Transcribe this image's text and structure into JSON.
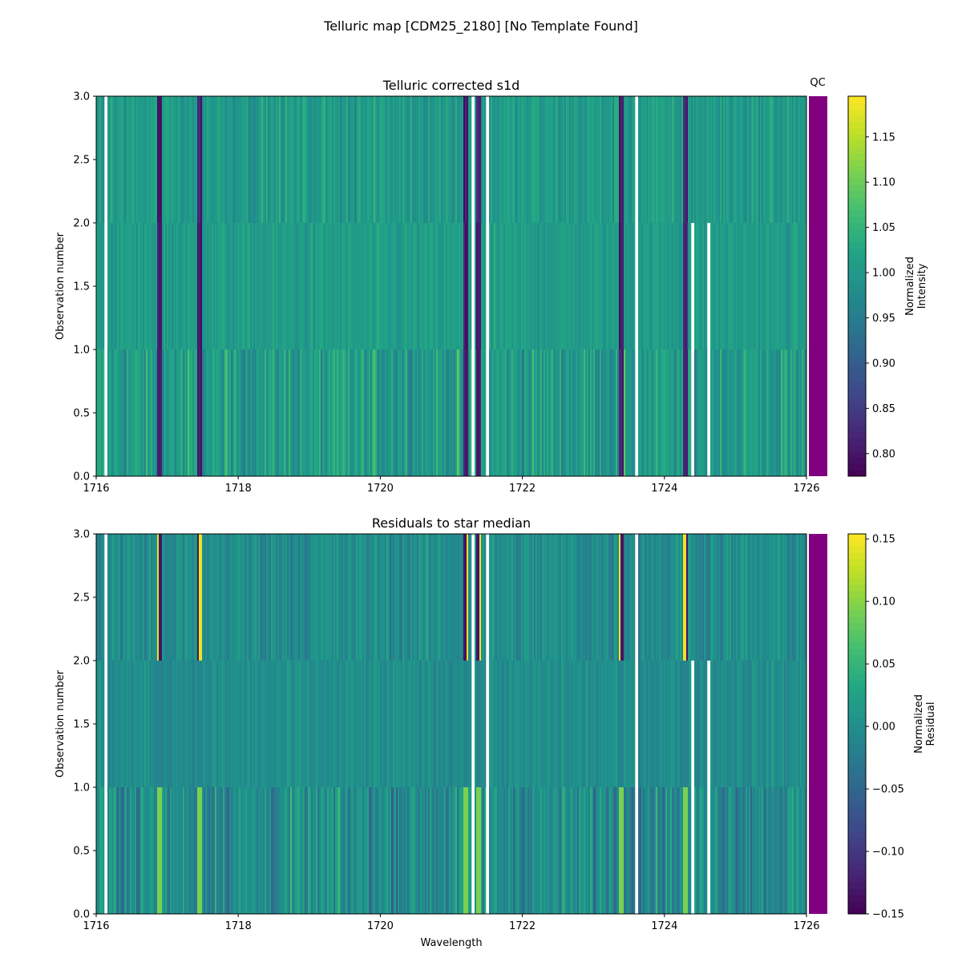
{
  "suptitle": "Telluric map [CDM25_2180] [No Template Found]",
  "chart_data": [
    {
      "type": "heatmap",
      "title": "Telluric corrected s1d",
      "xlabel": "",
      "ylabel": "Observation number",
      "xlim": [
        1716,
        1726
      ],
      "ylim": [
        0,
        3
      ],
      "xticks": [
        "1716",
        "1718",
        "1720",
        "1722",
        "1724",
        "1726"
      ],
      "yticks": [
        "0.0",
        "0.5",
        "1.0",
        "1.5",
        "2.0",
        "2.5",
        "3.0"
      ],
      "rows": [
        {
          "y": [
            0,
            1
          ],
          "gaps": [
            [
              1716.12,
              1716.15
            ],
            [
              1721.29,
              1721.33
            ],
            [
              1721.48,
              1721.52
            ],
            [
              1723.58,
              1723.64
            ],
            [
              1724.38,
              1724.42
            ],
            [
              1724.6,
              1724.64
            ]
          ]
        },
        {
          "y": [
            1,
            2
          ],
          "gaps": [
            [
              1716.12,
              1716.15
            ],
            [
              1721.29,
              1721.33
            ],
            [
              1721.48,
              1721.52
            ],
            [
              1723.58,
              1723.64
            ],
            [
              1724.38,
              1724.42
            ],
            [
              1724.6,
              1724.64
            ]
          ]
        },
        {
          "y": [
            2,
            3
          ],
          "gaps": [
            [
              1716.12,
              1716.15
            ],
            [
              1721.29,
              1721.33
            ],
            [
              1721.48,
              1721.52
            ],
            [
              1723.58,
              1723.64
            ]
          ]
        }
      ],
      "absorption_features": [
        1716.9,
        1717.45,
        1721.2,
        1721.38,
        1723.4,
        1724.3
      ],
      "qc_label": "QC",
      "qc_color": "#800080",
      "colorbar": {
        "label": "Normalized\nIntensity",
        "label_lines": [
          "Normalized",
          "Intensity"
        ],
        "range": [
          0.775,
          1.195
        ],
        "ticks": [
          "0.80",
          "0.85",
          "0.90",
          "0.95",
          "1.00",
          "1.05",
          "1.10",
          "1.15"
        ],
        "colormap": "viridis"
      }
    },
    {
      "type": "heatmap",
      "title": "Residuals to star median",
      "xlabel": "Wavelength",
      "ylabel": "Observation number",
      "xlim": [
        1716,
        1726
      ],
      "ylim": [
        0,
        3
      ],
      "xticks": [
        "1716",
        "1718",
        "1720",
        "1722",
        "1724",
        "1726"
      ],
      "yticks": [
        "0.0",
        "0.5",
        "1.0",
        "1.5",
        "2.0",
        "2.5",
        "3.0"
      ],
      "rows": [
        {
          "y": [
            0,
            1
          ],
          "gaps": [
            [
              1716.12,
              1716.15
            ],
            [
              1721.29,
              1721.33
            ],
            [
              1721.48,
              1721.52
            ],
            [
              1723.58,
              1723.64
            ],
            [
              1724.38,
              1724.42
            ],
            [
              1724.6,
              1724.64
            ]
          ]
        },
        {
          "y": [
            1,
            2
          ],
          "gaps": [
            [
              1716.12,
              1716.15
            ],
            [
              1721.29,
              1721.33
            ],
            [
              1721.48,
              1721.52
            ],
            [
              1723.58,
              1723.64
            ],
            [
              1724.38,
              1724.42
            ],
            [
              1724.6,
              1724.64
            ]
          ]
        },
        {
          "y": [
            2,
            3
          ],
          "gaps": [
            [
              1716.12,
              1716.15
            ],
            [
              1721.29,
              1721.33
            ],
            [
              1721.48,
              1721.52
            ],
            [
              1723.58,
              1723.64
            ]
          ]
        }
      ],
      "absorption_features": [
        1716.9,
        1717.45,
        1721.2,
        1721.38,
        1723.4,
        1724.3
      ],
      "qc_label": "",
      "qc_color": "#800080",
      "colorbar": {
        "label_lines": [
          "Normalized",
          "Residual"
        ],
        "range": [
          -0.15,
          0.154
        ],
        "ticks": [
          "−0.15",
          "−0.10",
          "−0.05",
          "0.00",
          "0.05",
          "0.10",
          "0.15"
        ],
        "colormap": "viridis"
      }
    }
  ]
}
